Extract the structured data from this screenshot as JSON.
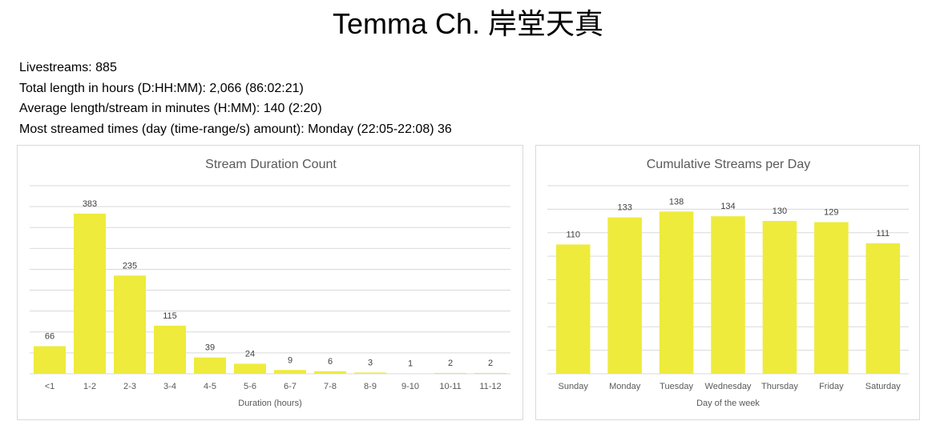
{
  "page_title": "Temma Ch. 岸堂天真",
  "stats": {
    "livestreams": "Livestreams: 885",
    "total_length": "Total length in hours (D:HH:MM): 2,066 (86:02:21)",
    "average_length": "Average length/stream in minutes (H:MM): 140 (2:20)",
    "most_streamed": "Most streamed times (day (time-range/s) amount): Monday (22:05-22:08) 36"
  },
  "colors": {
    "bar": "#EEEB3C",
    "grid": "#D9D9D9",
    "text": "#595959"
  },
  "chart_data": [
    {
      "type": "bar",
      "title": "Stream Duration Count",
      "xlabel": "Duration (hours)",
      "ylabel": "",
      "categories": [
        "<1",
        "1-2",
        "2-3",
        "3-4",
        "4-5",
        "5-6",
        "6-7",
        "7-8",
        "8-9",
        "9-10",
        "10-11",
        "11-12"
      ],
      "values": [
        66,
        383,
        235,
        115,
        39,
        24,
        9,
        6,
        3,
        1,
        2,
        2
      ],
      "ylim": [
        0,
        450
      ],
      "gridlines": 9,
      "legend": "none"
    },
    {
      "type": "bar",
      "title": "Cumulative Streams per Day",
      "xlabel": "Day of the week",
      "ylabel": "",
      "categories": [
        "Sunday",
        "Monday",
        "Tuesday",
        "Wednesday",
        "Thursday",
        "Friday",
        "Saturday"
      ],
      "values": [
        110,
        133,
        138,
        134,
        130,
        129,
        111
      ],
      "ylim": [
        0,
        160
      ],
      "gridlines": 8,
      "legend": "none"
    }
  ]
}
